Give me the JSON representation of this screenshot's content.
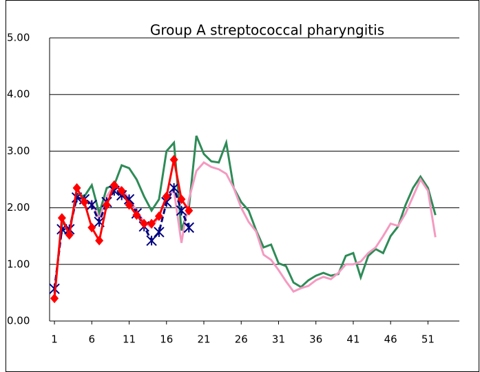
{
  "chart_data": {
    "type": "line",
    "title": "Group A streptococcal pharyngitis",
    "x": [
      1,
      2,
      3,
      4,
      5,
      6,
      7,
      8,
      9,
      10,
      11,
      12,
      13,
      14,
      15,
      16,
      17,
      18,
      19,
      20,
      21,
      22,
      23,
      24,
      25,
      26,
      27,
      28,
      29,
      30,
      31,
      32,
      33,
      34,
      35,
      36,
      37,
      38,
      39,
      40,
      41,
      42,
      43,
      44,
      45,
      46,
      47,
      48,
      49,
      50,
      51,
      52
    ],
    "xlim": [
      0.35,
      55.2
    ],
    "xticks": [
      1,
      6,
      11,
      16,
      21,
      26,
      31,
      36,
      41,
      46,
      51
    ],
    "ylim": [
      0,
      5
    ],
    "yticks": [
      {
        "value": 0,
        "label": "0.00"
      },
      {
        "value": 1,
        "label": "1.00"
      },
      {
        "value": 2,
        "label": "2.00"
      },
      {
        "value": 3,
        "label": "3.00"
      },
      {
        "value": 4,
        "label": "4.00"
      },
      {
        "value": 5,
        "label": "5.00"
      }
    ],
    "grid": true,
    "series": [
      {
        "color": "#2e8b57",
        "marker": "none",
        "values": [
          0.5,
          1.75,
          1.6,
          2.25,
          2.2,
          2.4,
          1.9,
          2.35,
          2.4,
          2.75,
          2.7,
          2.5,
          2.2,
          1.95,
          2.15,
          3.0,
          3.15,
          1.6,
          2.0,
          3.27,
          2.95,
          2.82,
          2.8,
          3.15,
          2.35,
          2.1,
          1.95,
          1.6,
          1.3,
          1.35,
          1.02,
          0.97,
          0.68,
          0.6,
          0.72,
          0.8,
          0.85,
          0.8,
          0.83,
          1.15,
          1.2,
          0.77,
          1.15,
          1.27,
          1.2,
          1.5,
          1.67,
          2.05,
          2.35,
          2.55,
          2.35,
          1.87
        ]
      },
      {
        "color": "#f49ac1",
        "marker": "none",
        "values": [
          0.45,
          1.8,
          1.6,
          2.2,
          2.1,
          2.1,
          1.8,
          2.2,
          2.4,
          2.35,
          2.15,
          1.95,
          1.75,
          1.65,
          1.85,
          2.2,
          2.3,
          1.38,
          2.15,
          2.65,
          2.8,
          2.72,
          2.68,
          2.6,
          2.35,
          2.0,
          1.75,
          1.58,
          1.17,
          1.08,
          0.9,
          0.7,
          0.52,
          0.58,
          0.62,
          0.72,
          0.78,
          0.74,
          0.85,
          1.0,
          1.0,
          1.05,
          1.2,
          1.3,
          1.5,
          1.72,
          1.68,
          1.9,
          2.2,
          2.5,
          2.3,
          1.48
        ]
      },
      {
        "color": "#000080",
        "marker": "asterisk",
        "dashed": true,
        "values": [
          0.57,
          1.62,
          1.62,
          2.18,
          2.15,
          2.05,
          1.75,
          2.1,
          2.3,
          2.22,
          2.15,
          1.9,
          1.67,
          1.42,
          1.57,
          2.1,
          2.35,
          1.95,
          1.65,
          null,
          null,
          null,
          null,
          null,
          null,
          null,
          null,
          null,
          null,
          null,
          null,
          null,
          null,
          null,
          null,
          null,
          null,
          null,
          null,
          null,
          null,
          null,
          null,
          null,
          null,
          null,
          null,
          null,
          null,
          null,
          null,
          null
        ]
      },
      {
        "color": "#ff0000",
        "marker": "diamond",
        "values": [
          0.4,
          1.82,
          1.52,
          2.35,
          2.1,
          1.65,
          1.42,
          2.05,
          2.4,
          2.3,
          2.05,
          1.87,
          1.72,
          1.72,
          1.85,
          2.2,
          2.85,
          2.15,
          1.95,
          null,
          null,
          null,
          null,
          null,
          null,
          null,
          null,
          null,
          null,
          null,
          null,
          null,
          null,
          null,
          null,
          null,
          null,
          null,
          null,
          null,
          null,
          null,
          null,
          null,
          null,
          null,
          null,
          null,
          null,
          null,
          null,
          null
        ]
      }
    ]
  }
}
